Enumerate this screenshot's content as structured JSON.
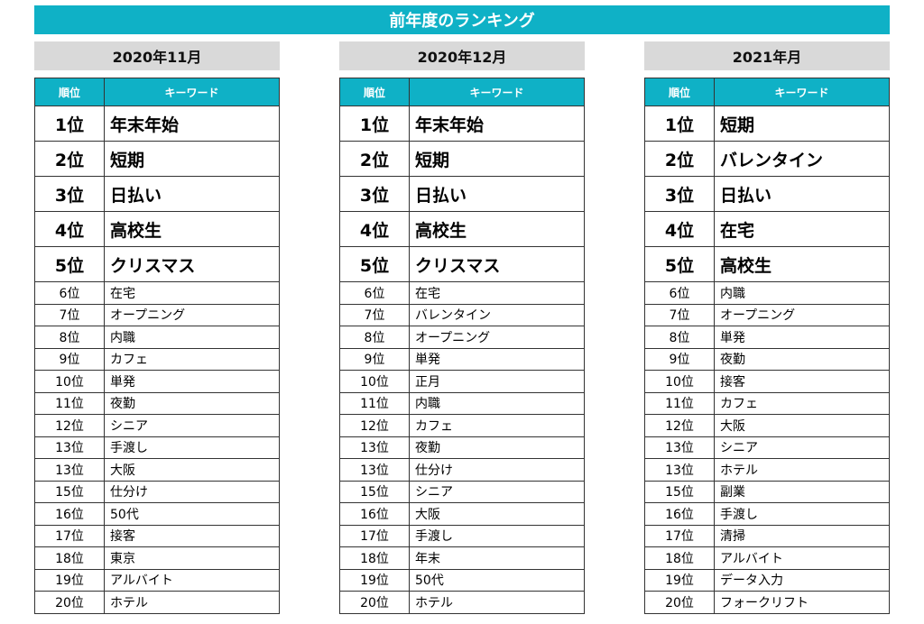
{
  "title": "前年度のランキング",
  "headers": {
    "rank": "順位",
    "keyword": "キーワード"
  },
  "months": [
    {
      "label": "2020年11月",
      "rows": [
        {
          "rank": "1位",
          "keyword": "年末年始"
        },
        {
          "rank": "2位",
          "keyword": "短期"
        },
        {
          "rank": "3位",
          "keyword": "日払い"
        },
        {
          "rank": "4位",
          "keyword": "高校生"
        },
        {
          "rank": "5位",
          "keyword": "クリスマス"
        },
        {
          "rank": "6位",
          "keyword": "在宅"
        },
        {
          "rank": "7位",
          "keyword": "オープニング"
        },
        {
          "rank": "8位",
          "keyword": "内職"
        },
        {
          "rank": "9位",
          "keyword": "カフェ"
        },
        {
          "rank": "10位",
          "keyword": "単発"
        },
        {
          "rank": "11位",
          "keyword": "夜勤"
        },
        {
          "rank": "12位",
          "keyword": "シニア"
        },
        {
          "rank": "13位",
          "keyword": "手渡し"
        },
        {
          "rank": "13位",
          "keyword": "大阪"
        },
        {
          "rank": "15位",
          "keyword": "仕分け"
        },
        {
          "rank": "16位",
          "keyword": "50代"
        },
        {
          "rank": "17位",
          "keyword": "接客"
        },
        {
          "rank": "18位",
          "keyword": "東京"
        },
        {
          "rank": "19位",
          "keyword": "アルバイト"
        },
        {
          "rank": "20位",
          "keyword": "ホテル"
        }
      ]
    },
    {
      "label": "2020年12月",
      "rows": [
        {
          "rank": "1位",
          "keyword": "年末年始"
        },
        {
          "rank": "2位",
          "keyword": "短期"
        },
        {
          "rank": "3位",
          "keyword": "日払い"
        },
        {
          "rank": "4位",
          "keyword": "高校生"
        },
        {
          "rank": "5位",
          "keyword": "クリスマス"
        },
        {
          "rank": "6位",
          "keyword": "在宅"
        },
        {
          "rank": "7位",
          "keyword": "バレンタイン"
        },
        {
          "rank": "8位",
          "keyword": "オープニング"
        },
        {
          "rank": "9位",
          "keyword": "単発"
        },
        {
          "rank": "10位",
          "keyword": "正月"
        },
        {
          "rank": "11位",
          "keyword": "内職"
        },
        {
          "rank": "12位",
          "keyword": "カフェ"
        },
        {
          "rank": "13位",
          "keyword": "夜勤"
        },
        {
          "rank": "13位",
          "keyword": "仕分け"
        },
        {
          "rank": "15位",
          "keyword": "シニア"
        },
        {
          "rank": "16位",
          "keyword": "大阪"
        },
        {
          "rank": "17位",
          "keyword": "手渡し"
        },
        {
          "rank": "18位",
          "keyword": "年末"
        },
        {
          "rank": "19位",
          "keyword": "50代"
        },
        {
          "rank": "20位",
          "keyword": "ホテル"
        }
      ]
    },
    {
      "label": "2021年月",
      "rows": [
        {
          "rank": "1位",
          "keyword": "短期"
        },
        {
          "rank": "2位",
          "keyword": "バレンタイン"
        },
        {
          "rank": "3位",
          "keyword": "日払い"
        },
        {
          "rank": "4位",
          "keyword": "在宅"
        },
        {
          "rank": "5位",
          "keyword": "高校生"
        },
        {
          "rank": "6位",
          "keyword": "内職"
        },
        {
          "rank": "7位",
          "keyword": "オープニング"
        },
        {
          "rank": "8位",
          "keyword": "単発"
        },
        {
          "rank": "9位",
          "keyword": "夜勤"
        },
        {
          "rank": "10位",
          "keyword": "接客"
        },
        {
          "rank": "11位",
          "keyword": "カフェ"
        },
        {
          "rank": "12位",
          "keyword": "大阪"
        },
        {
          "rank": "13位",
          "keyword": "シニア"
        },
        {
          "rank": "13位",
          "keyword": "ホテル"
        },
        {
          "rank": "15位",
          "keyword": "副業"
        },
        {
          "rank": "16位",
          "keyword": "手渡し"
        },
        {
          "rank": "17位",
          "keyword": "清掃"
        },
        {
          "rank": "18位",
          "keyword": "アルバイト"
        },
        {
          "rank": "19位",
          "keyword": "データ入力"
        },
        {
          "rank": "20位",
          "keyword": "フォークリフト"
        }
      ]
    }
  ]
}
